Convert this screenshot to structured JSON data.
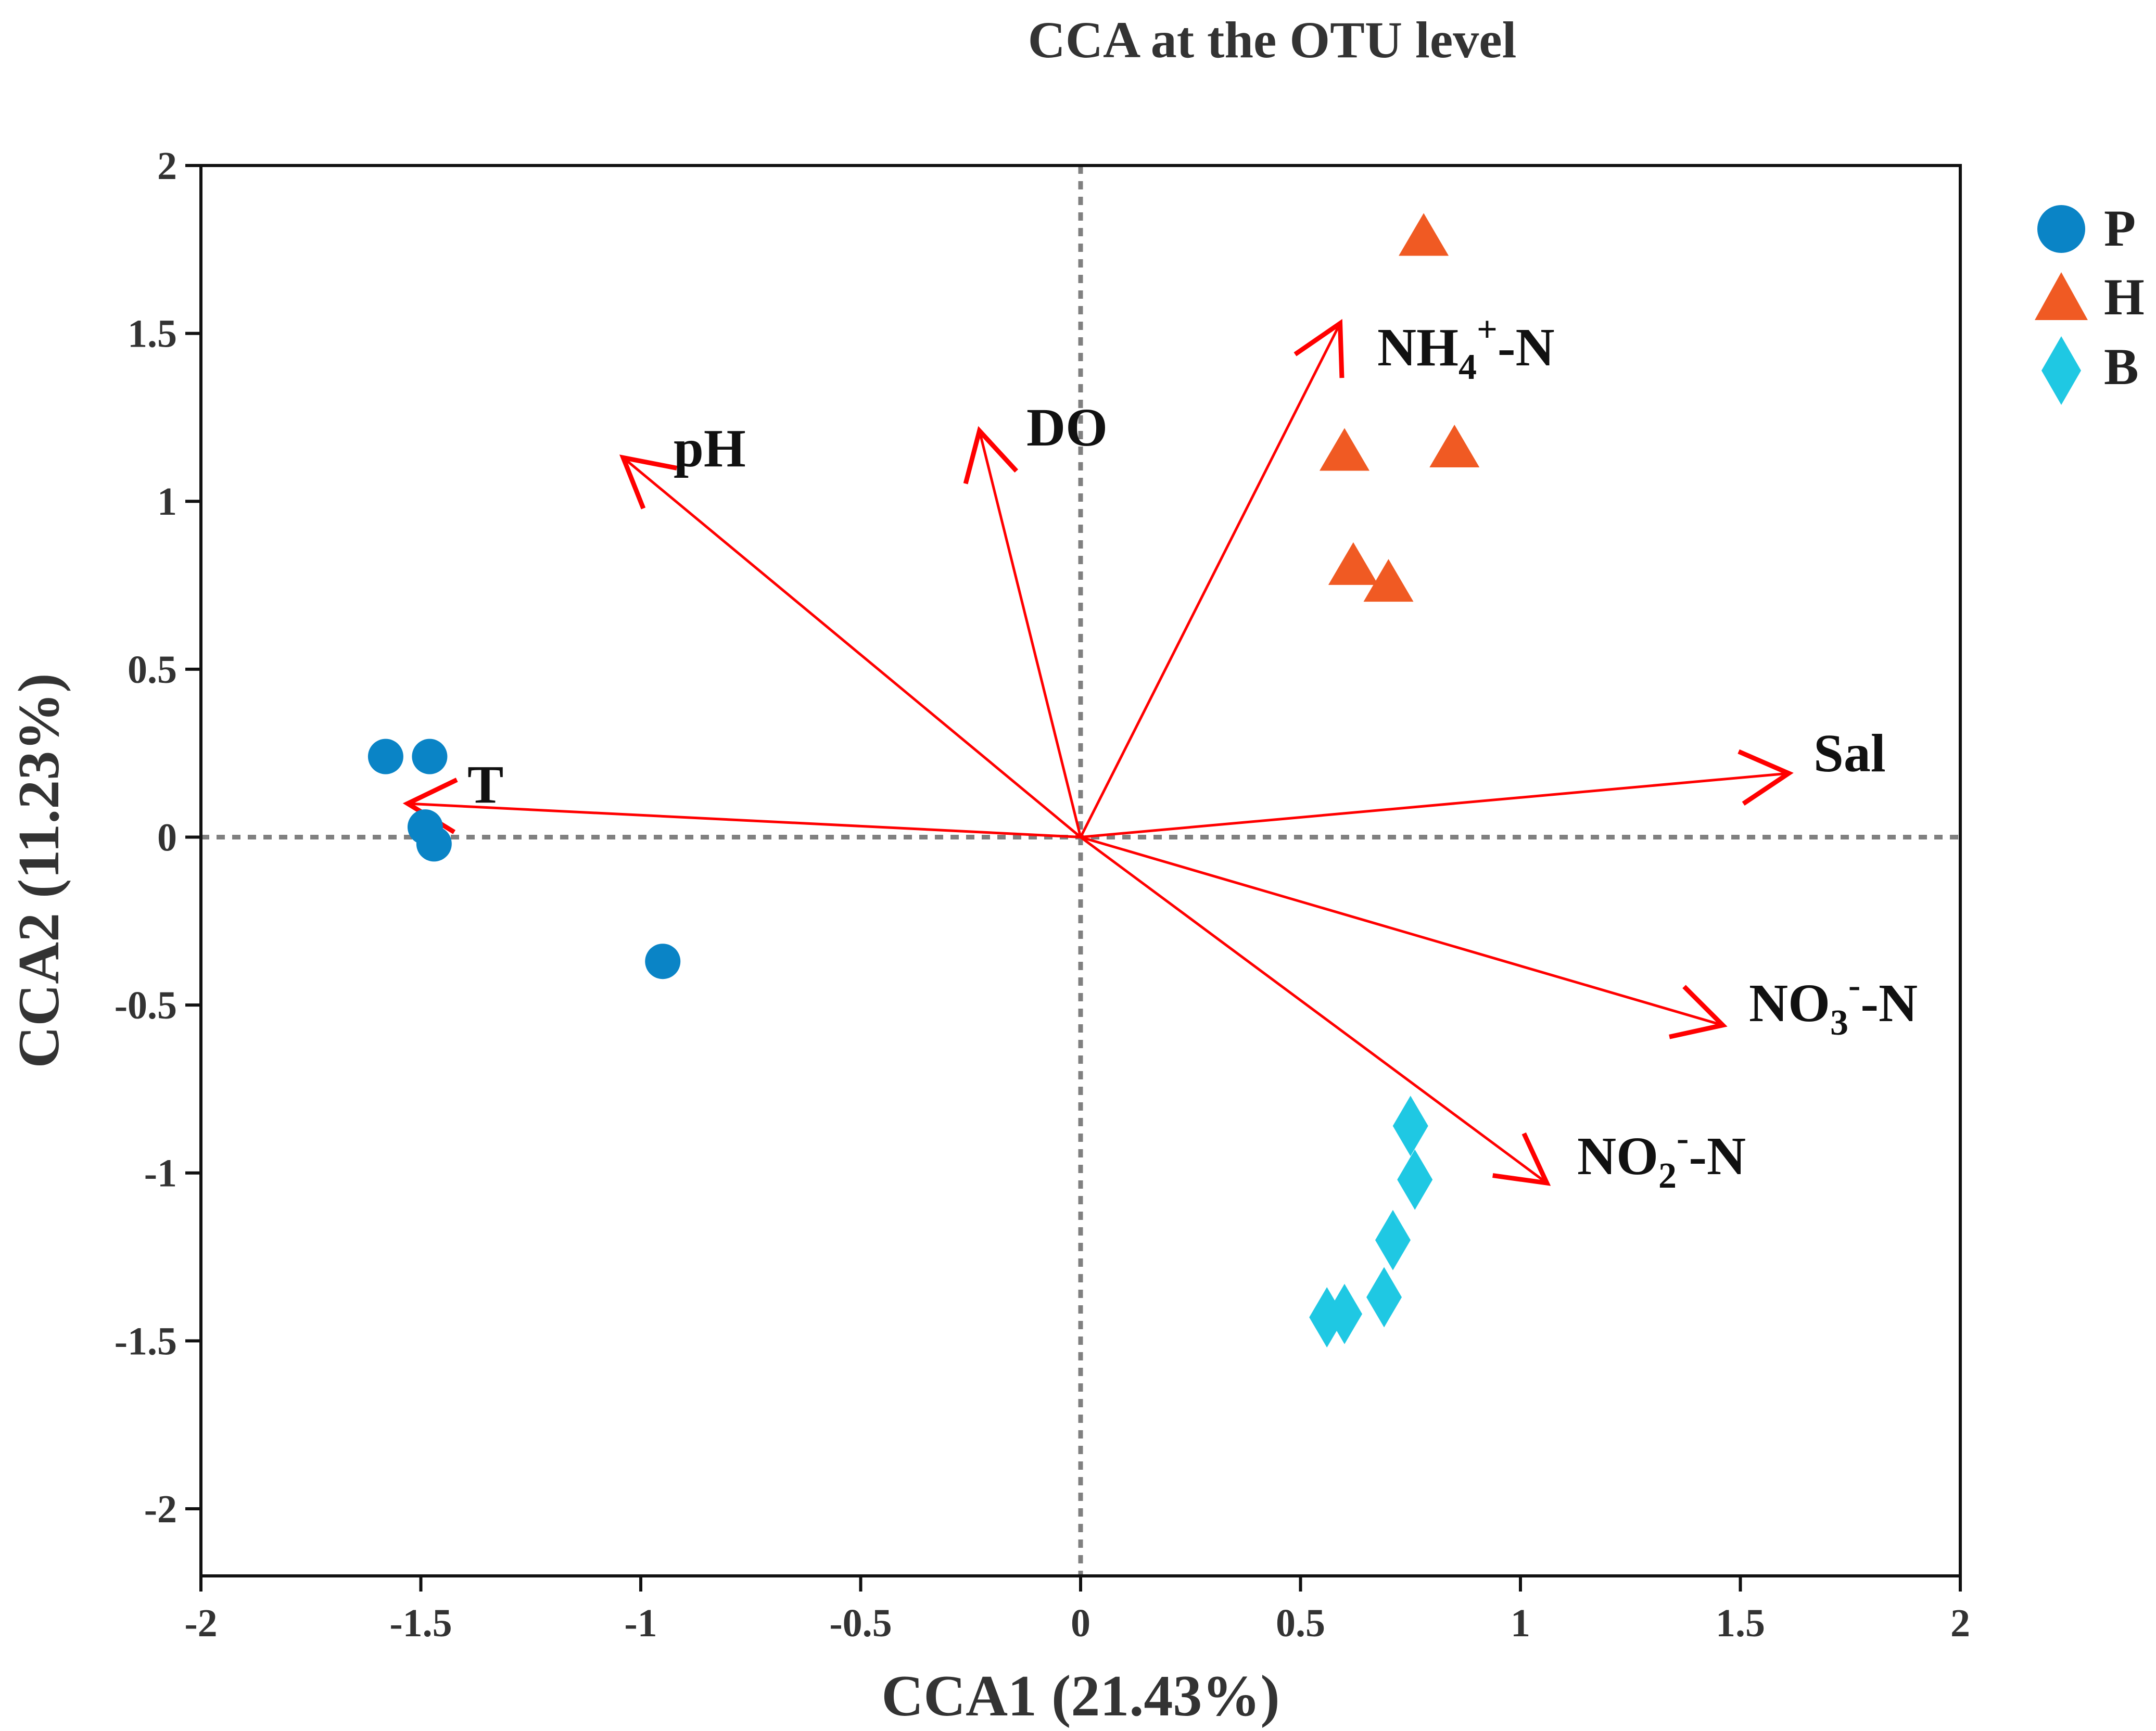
{
  "chart_data": {
    "type": "scatter",
    "title": "CCA at the OTU level",
    "xlabel": "CCA1 (21.43%)",
    "ylabel": "CCA2 (11.23%)",
    "xlim": [
      -2,
      2
    ],
    "ylim": [
      -2.2,
      2
    ],
    "xticks": [
      -2,
      -1.5,
      -1,
      -0.5,
      0,
      0.5,
      1,
      1.5,
      2
    ],
    "yticks": [
      -2,
      -1.5,
      -1,
      -0.5,
      0,
      0.5,
      1,
      1.5,
      2
    ],
    "xtick_labels": [
      "-2",
      "-1.5",
      "-1",
      "-0.5",
      "0",
      "0.5",
      "1",
      "1.5",
      "2"
    ],
    "ytick_labels": [
      "-2",
      "-1.5",
      "-1",
      "-0.5",
      "0",
      "0.5",
      "1",
      "1.5",
      "2"
    ],
    "reference_lines": {
      "x": 0,
      "y": 0,
      "style": "dotted"
    },
    "legend_position": "top-right",
    "series": [
      {
        "name": "P",
        "marker": "circle",
        "color": "#0a84c6",
        "points": [
          [
            -1.58,
            0.24
          ],
          [
            -1.48,
            0.24
          ],
          [
            -1.49,
            0.03
          ],
          [
            -1.47,
            -0.02
          ],
          [
            -0.95,
            -0.37
          ]
        ]
      },
      {
        "name": "H",
        "marker": "triangle",
        "color": "#f05a23",
        "points": [
          [
            0.78,
            1.79
          ],
          [
            0.6,
            1.15
          ],
          [
            0.85,
            1.16
          ],
          [
            0.62,
            0.81
          ],
          [
            0.7,
            0.76
          ]
        ]
      },
      {
        "name": "B",
        "marker": "diamond",
        "color": "#1fc8e3",
        "points": [
          [
            0.75,
            -0.86
          ],
          [
            0.76,
            -1.02
          ],
          [
            0.71,
            -1.2
          ],
          [
            0.69,
            -1.37
          ],
          [
            0.6,
            -1.42
          ],
          [
            0.56,
            -1.43
          ]
        ]
      }
    ],
    "arrows": [
      {
        "name": "T",
        "x": -1.53,
        "y": 0.1
      },
      {
        "name": "pH",
        "x": -1.04,
        "y": 1.13
      },
      {
        "name": "DO",
        "x": -0.23,
        "y": 1.21
      },
      {
        "name": "NH4+-N",
        "x": 0.59,
        "y": 1.53
      },
      {
        "name": "Sal",
        "x": 1.61,
        "y": 0.19
      },
      {
        "name": "NO3--N",
        "x": 1.46,
        "y": -0.56
      },
      {
        "name": "NO2--N",
        "x": 1.06,
        "y": -1.03
      }
    ],
    "arrow_labels": {
      "T": "T",
      "pH": "pH",
      "DO": "DO",
      "NH4": {
        "base": "NH",
        "sub": "4",
        "sup": "+",
        "tail": "-N"
      },
      "Sal": "Sal",
      "NO3": {
        "base": "NO",
        "sub": "3",
        "sup": "-",
        "tail": "-N"
      },
      "NO2": {
        "base": "NO",
        "sub": "2",
        "sup": "-",
        "tail": "-N"
      }
    },
    "arrow_color": "#ff0000",
    "reference_line_color": "#808080"
  }
}
